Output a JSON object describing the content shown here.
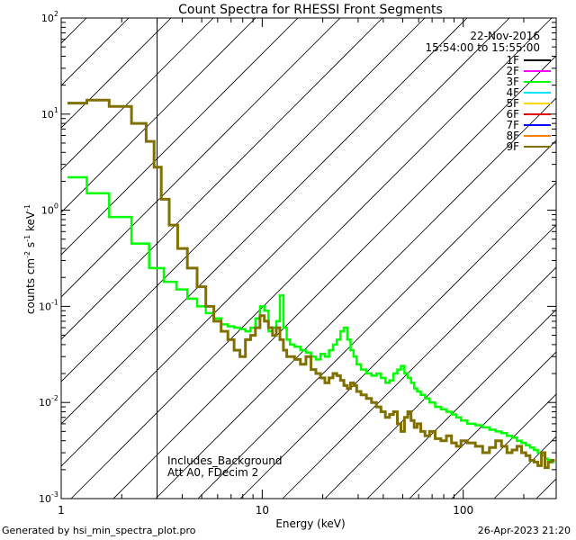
{
  "chart_data": {
    "type": "line",
    "title": "Count Spectra for RHESSI Front Segments",
    "xlabel": "Energy (keV)",
    "ylabel": "counts cm^-2 s^-1 keV^-1",
    "xscale": "log",
    "yscale": "log",
    "xlim": [
      1.0,
      290
    ],
    "ylim": [
      0.001,
      100
    ],
    "x_ticks": [
      {
        "value": 1,
        "label": "1"
      },
      {
        "value": 10,
        "label": "10"
      },
      {
        "value": 100,
        "label": "100"
      }
    ],
    "y_ticks": [
      {
        "value": 0.001,
        "base": "10",
        "exp": "-3"
      },
      {
        "value": 0.01,
        "base": "10",
        "exp": "-2"
      },
      {
        "value": 0.1,
        "base": "10",
        "exp": "-1"
      },
      {
        "value": 1,
        "base": "10",
        "exp": "0"
      },
      {
        "value": 10,
        "base": "10",
        "exp": "1"
      },
      {
        "value": 100,
        "base": "10",
        "exp": "2"
      }
    ],
    "date": "22-Nov-2016",
    "time_range": "15:54:00 to 15:55:00",
    "hatch_region": {
      "xmin": 1.0,
      "xmax": 3.0
    },
    "annotations": [
      "Includes_Background",
      "Att A0, FDecim 2"
    ],
    "legend": [
      {
        "label": "1F",
        "color": "#000000"
      },
      {
        "label": "2F",
        "color": "#ff00ff"
      },
      {
        "label": "3F",
        "color": "#00ff00"
      },
      {
        "label": "4F",
        "color": "#00e5ff"
      },
      {
        "label": "5F",
        "color": "#ffd700"
      },
      {
        "label": "6F",
        "color": "#e00000"
      },
      {
        "label": "7F",
        "color": "#0000ff"
      },
      {
        "label": "8F",
        "color": "#ff7f00"
      },
      {
        "label": "9F",
        "color": "#807000"
      }
    ],
    "series": [
      {
        "name": "3F",
        "color": "#00ff00",
        "x": [
          1.2,
          1.5,
          2.0,
          2.5,
          3.0,
          3.5,
          4.0,
          4.5,
          5.0,
          5.5,
          6.0,
          6.5,
          7.0,
          7.5,
          8.0,
          8.5,
          9.0,
          9.5,
          10.0,
          10.5,
          11.0,
          11.5,
          12.0,
          12.5,
          13.0,
          13.5,
          14.0,
          15.0,
          16.0,
          17.0,
          18.0,
          19.0,
          20.0,
          21.0,
          22.0,
          23.0,
          24.0,
          25.0,
          26.0,
          27.0,
          28.0,
          29.0,
          30.0,
          32.0,
          34.0,
          36.0,
          38.0,
          40.0,
          42.0,
          44.0,
          46.0,
          48.0,
          50.0,
          52.0,
          54.0,
          56.0,
          58.0,
          60.0,
          63.0,
          66.0,
          70.0,
          75.0,
          80.0,
          85.0,
          90.0,
          95.0,
          100.0,
          110.0,
          120.0,
          130.0,
          140.0,
          150.0,
          160.0,
          170.0,
          180.0,
          190.0,
          200.0,
          210.0,
          220.0,
          230.0,
          240.0,
          250.0,
          260.0,
          270.0,
          280.0
        ],
        "y": [
          2.2,
          1.5,
          0.85,
          0.45,
          0.25,
          0.18,
          0.15,
          0.12,
          0.1,
          0.085,
          0.075,
          0.065,
          0.062,
          0.06,
          0.058,
          0.055,
          0.06,
          0.075,
          0.1,
          0.09,
          0.055,
          0.06,
          0.07,
          0.13,
          0.06,
          0.045,
          0.04,
          0.038,
          0.035,
          0.033,
          0.03,
          0.028,
          0.032,
          0.03,
          0.035,
          0.04,
          0.045,
          0.055,
          0.06,
          0.045,
          0.035,
          0.03,
          0.025,
          0.022,
          0.02,
          0.019,
          0.02,
          0.018,
          0.016,
          0.017,
          0.02,
          0.022,
          0.024,
          0.02,
          0.018,
          0.016,
          0.014,
          0.013,
          0.012,
          0.011,
          0.01,
          0.009,
          0.0085,
          0.008,
          0.0075,
          0.007,
          0.0065,
          0.006,
          0.0058,
          0.0055,
          0.0052,
          0.005,
          0.0048,
          0.0045,
          0.0043,
          0.004,
          0.0038,
          0.0036,
          0.0034,
          0.0032,
          0.003,
          0.0028,
          0.0026,
          0.0025,
          0.0024
        ]
      },
      {
        "name": "9F",
        "color": "#807000",
        "x": [
          1.2,
          1.5,
          2.0,
          2.5,
          2.8,
          3.0,
          3.3,
          3.6,
          4.0,
          4.5,
          5.0,
          5.5,
          6.0,
          6.5,
          7.0,
          7.5,
          8.0,
          8.5,
          9.0,
          9.5,
          10.0,
          10.5,
          11.0,
          11.5,
          12.0,
          12.5,
          13.0,
          13.5,
          14.0,
          15.0,
          16.0,
          17.0,
          18.0,
          19.0,
          20.0,
          21.0,
          22.0,
          23.0,
          24.0,
          25.0,
          26.0,
          27.0,
          28.0,
          29.0,
          30.0,
          32.0,
          34.0,
          36.0,
          38.0,
          40.0,
          42.0,
          44.0,
          46.0,
          48.0,
          50.0,
          52.0,
          54.0,
          56.0,
          58.0,
          60.0,
          63.0,
          66.0,
          70.0,
          75.0,
          80.0,
          85.0,
          90.0,
          95.0,
          100.0,
          110.0,
          120.0,
          130.0,
          140.0,
          150.0,
          160.0,
          170.0,
          180.0,
          190.0,
          200.0,
          210.0,
          220.0,
          230.0,
          240.0,
          250.0,
          260.0,
          270.0,
          280.0
        ],
        "y": [
          13,
          14,
          12,
          8,
          5.2,
          2.8,
          1.3,
          0.7,
          0.4,
          0.25,
          0.16,
          0.1,
          0.07,
          0.055,
          0.045,
          0.035,
          0.03,
          0.045,
          0.05,
          0.06,
          0.08,
          0.07,
          0.06,
          0.05,
          0.06,
          0.045,
          0.035,
          0.03,
          0.03,
          0.028,
          0.025,
          0.03,
          0.022,
          0.02,
          0.018,
          0.016,
          0.018,
          0.02,
          0.019,
          0.017,
          0.015,
          0.014,
          0.016,
          0.015,
          0.013,
          0.012,
          0.011,
          0.01,
          0.009,
          0.008,
          0.007,
          0.0075,
          0.008,
          0.006,
          0.005,
          0.007,
          0.008,
          0.0065,
          0.0055,
          0.006,
          0.005,
          0.0045,
          0.005,
          0.0042,
          0.004,
          0.0045,
          0.0038,
          0.0035,
          0.004,
          0.0038,
          0.0035,
          0.003,
          0.0034,
          0.004,
          0.0035,
          0.003,
          0.0032,
          0.0035,
          0.003,
          0.0028,
          0.0025,
          0.0024,
          0.0022,
          0.003,
          0.0021,
          0.0024,
          0.0025
        ]
      }
    ]
  },
  "footer": {
    "left": "Generated by hsi_min_spectra_plot.pro",
    "right": "26-Apr-2023 21:20"
  }
}
